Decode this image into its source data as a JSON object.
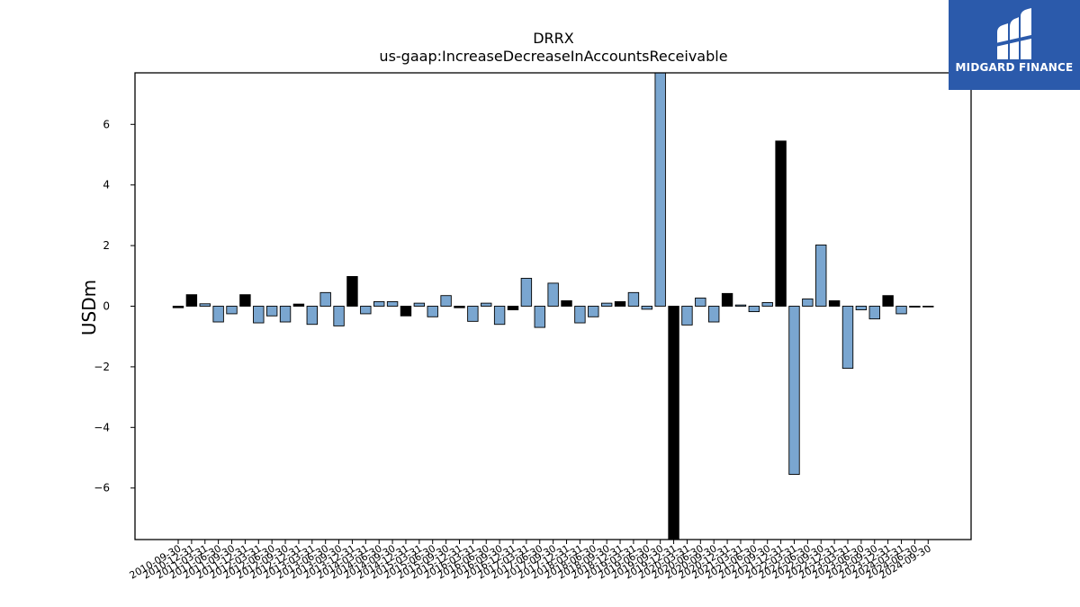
{
  "chart_data": {
    "type": "bar",
    "title": "DRRX",
    "subtitle": "us-gaap:IncreaseDecreaseInAccountsReceivable",
    "xlabel": "",
    "ylabel": "USDm",
    "ylim": [
      -7.7,
      7.7
    ],
    "yticks": [
      -6,
      -4,
      -2,
      0,
      2,
      4,
      6
    ],
    "ytick_labels": [
      "−6",
      "−4",
      "−2",
      "0",
      "2",
      "4",
      "6"
    ],
    "grid": false,
    "categories": [
      "2010-09-30",
      "2010-12-31",
      "2011-03-31",
      "2011-06-30",
      "2011-09-30",
      "2011-12-31",
      "2012-03-31",
      "2012-06-30",
      "2012-09-30",
      "2012-12-31",
      "2013-03-31",
      "2013-06-30",
      "2013-09-30",
      "2013-12-31",
      "2014-03-31",
      "2014-06-30",
      "2014-09-30",
      "2014-12-31",
      "2015-03-31",
      "2015-06-30",
      "2015-09-30",
      "2015-12-31",
      "2016-03-31",
      "2016-06-30",
      "2016-09-30",
      "2016-12-31",
      "2017-03-31",
      "2017-06-30",
      "2017-09-30",
      "2017-12-31",
      "2018-03-31",
      "2018-06-30",
      "2018-09-30",
      "2018-12-31",
      "2019-03-31",
      "2019-06-30",
      "2019-09-30",
      "2019-12-31",
      "2020-03-31",
      "2020-06-30",
      "2020-09-30",
      "2020-12-31",
      "2021-03-31",
      "2021-06-30",
      "2021-09-30",
      "2021-12-31",
      "2022-03-31",
      "2022-06-30",
      "2022-09-30",
      "2022-12-31",
      "2023-03-31",
      "2023-06-30",
      "2023-09-30",
      "2023-12-31",
      "2024-03-31",
      "2024-06-30",
      "2024-09-30"
    ],
    "values": [
      -0.05,
      0.38,
      0.08,
      -0.52,
      -0.25,
      0.38,
      -0.55,
      -0.32,
      -0.52,
      0.07,
      -0.6,
      0.45,
      -0.65,
      0.98,
      -0.25,
      0.15,
      0.15,
      -0.32,
      0.1,
      -0.35,
      0.35,
      -0.05,
      -0.5,
      0.1,
      -0.6,
      -0.12,
      0.92,
      -0.7,
      0.76,
      0.18,
      -0.55,
      -0.35,
      0.1,
      0.15,
      0.45,
      -0.1,
      7.7,
      -7.7,
      -0.62,
      0.27,
      -0.52,
      0.42,
      0.04,
      -0.18,
      0.12,
      5.45,
      -5.55,
      0.24,
      2.02,
      0.18,
      -2.05,
      -0.12,
      -0.42,
      0.35,
      -0.25,
      -0.03,
      -0.02
    ],
    "bar_colors": [
      "#000000",
      "#000000",
      "#7aa6d0",
      "#7aa6d0",
      "#7aa6d0",
      "#000000",
      "#7aa6d0",
      "#7aa6d0",
      "#7aa6d0",
      "#000000",
      "#7aa6d0",
      "#7aa6d0",
      "#7aa6d0",
      "#000000",
      "#7aa6d0",
      "#7aa6d0",
      "#7aa6d0",
      "#000000",
      "#7aa6d0",
      "#7aa6d0",
      "#7aa6d0",
      "#000000",
      "#7aa6d0",
      "#7aa6d0",
      "#7aa6d0",
      "#000000",
      "#7aa6d0",
      "#7aa6d0",
      "#7aa6d0",
      "#000000",
      "#7aa6d0",
      "#7aa6d0",
      "#7aa6d0",
      "#000000",
      "#7aa6d0",
      "#7aa6d0",
      "#7aa6d0",
      "#000000",
      "#7aa6d0",
      "#7aa6d0",
      "#7aa6d0",
      "#000000",
      "#7aa6d0",
      "#7aa6d0",
      "#7aa6d0",
      "#000000",
      "#7aa6d0",
      "#7aa6d0",
      "#7aa6d0",
      "#000000",
      "#7aa6d0",
      "#7aa6d0",
      "#7aa6d0",
      "#000000",
      "#7aa6d0",
      "#7aa6d0",
      "#000000"
    ]
  },
  "logo": {
    "text": "MIDGARD FINANCE",
    "background": "#2b5aab",
    "icon": "midgard-logo-icon"
  }
}
